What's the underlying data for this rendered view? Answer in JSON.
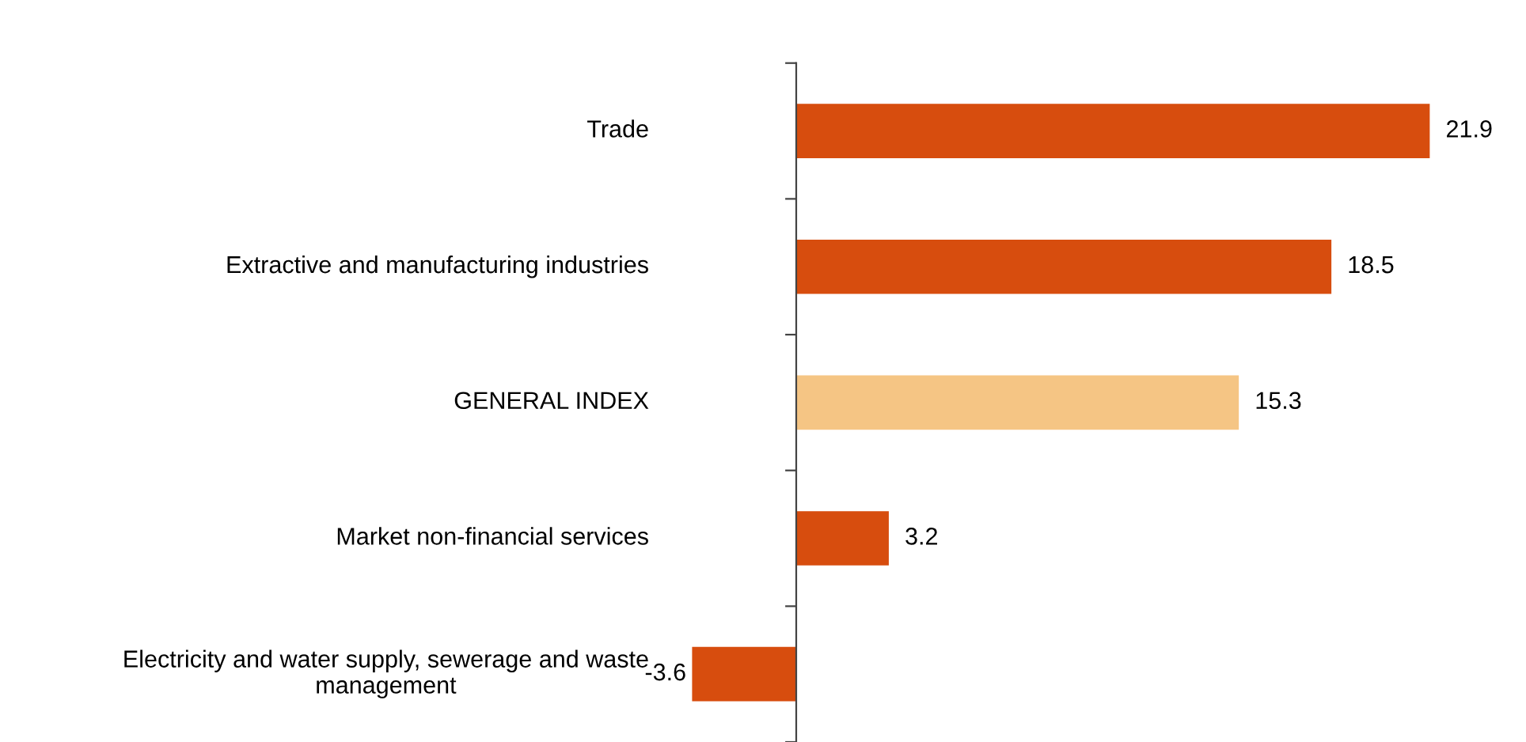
{
  "chart_data": {
    "type": "bar",
    "orientation": "horizontal",
    "categories": [
      "Trade",
      "Extractive and manufacturing industries",
      "GENERAL INDEX",
      "Market non-financial services",
      "Electricity and water supply, sewerage and waste management"
    ],
    "values": [
      21.9,
      18.5,
      15.3,
      3.2,
      -3.6
    ],
    "colors": [
      "#d74d0e",
      "#d74d0e",
      "#f5c584",
      "#d74d0e",
      "#d74d0e"
    ],
    "data_labels": true
  }
}
